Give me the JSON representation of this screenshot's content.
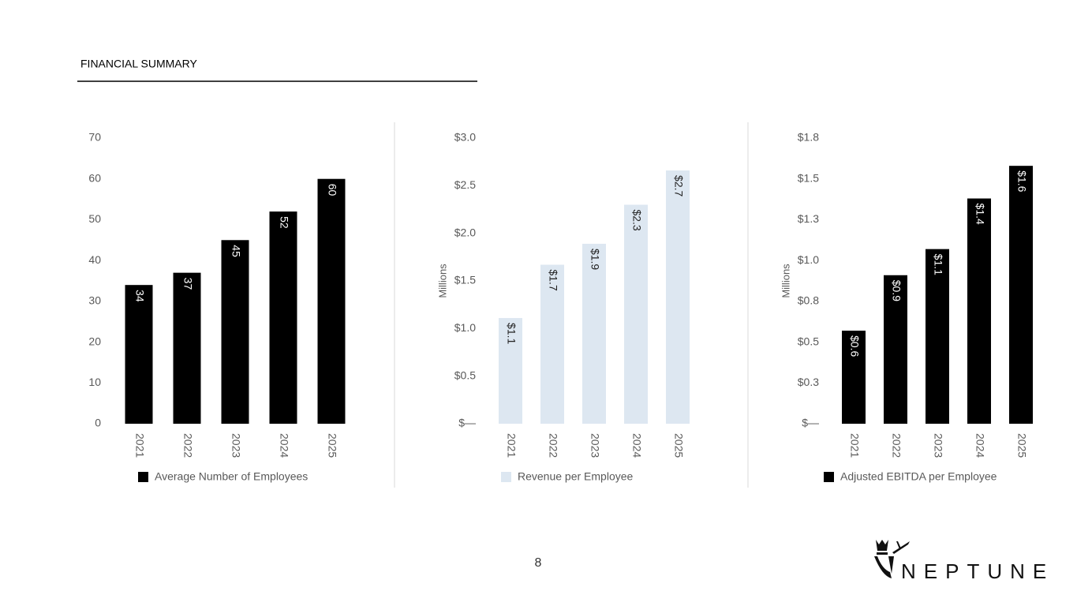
{
  "header": {
    "title": "FINANCIAL SUMMARY"
  },
  "page_number": "8",
  "logo": {
    "text": "NEPTUNE"
  },
  "chart_data": [
    {
      "type": "bar",
      "categories": [
        "2021",
        "2022",
        "2023",
        "2024",
        "2025"
      ],
      "series": [
        {
          "name": "Average Number of Employees",
          "color": "#000000",
          "values": [
            34,
            37,
            45,
            52,
            60
          ]
        }
      ],
      "ylim": [
        0,
        70
      ],
      "yticks": [
        0,
        10,
        20,
        30,
        40,
        50,
        60,
        70
      ]
    },
    {
      "type": "bar",
      "y_label": "Millions",
      "categories": [
        "2021",
        "2022",
        "2023",
        "2024",
        "2025"
      ],
      "series": [
        {
          "name": "Revenue per Employee",
          "color": "#dde7f1",
          "values": [
            1.11,
            1.67,
            1.89,
            2.3,
            2.66
          ],
          "value_labels": [
            "$1.1",
            "$1.7",
            "$1.9",
            "$2.3",
            "$2.7"
          ]
        }
      ],
      "ylim": [
        0,
        3.0
      ],
      "yticks": [
        {
          "value": 0,
          "label": "$—"
        },
        {
          "value": 0.5,
          "label": "$0.5"
        },
        {
          "value": 1.0,
          "label": "$1.0"
        },
        {
          "value": 1.5,
          "label": "$1.5"
        },
        {
          "value": 2.0,
          "label": "$2.0"
        },
        {
          "value": 2.5,
          "label": "$2.5"
        },
        {
          "value": 3.0,
          "label": "$3.0"
        }
      ]
    },
    {
      "type": "bar",
      "y_label": "Millions",
      "categories": [
        "2021",
        "2022",
        "2023",
        "2024",
        "2025"
      ],
      "series": [
        {
          "name": "Adjusted EBITDA per Employee",
          "color": "#000000",
          "values": [
            0.57,
            0.91,
            1.07,
            1.38,
            1.58
          ],
          "value_labels": [
            "$0.6",
            "$0.9",
            "$1.1",
            "$1.4",
            "$1.6"
          ]
        }
      ],
      "ylim": [
        0,
        1.75
      ],
      "yticks": [
        {
          "value": 0,
          "label": "$—"
        },
        {
          "value": 0.25,
          "label": "$0.3"
        },
        {
          "value": 0.5,
          "label": "$0.5"
        },
        {
          "value": 0.75,
          "label": "$0.8"
        },
        {
          "value": 1.0,
          "label": "$1.0"
        },
        {
          "value": 1.25,
          "label": "$1.3"
        },
        {
          "value": 1.5,
          "label": "$1.5"
        },
        {
          "value": 1.75,
          "label": "$1.8"
        }
      ]
    }
  ]
}
